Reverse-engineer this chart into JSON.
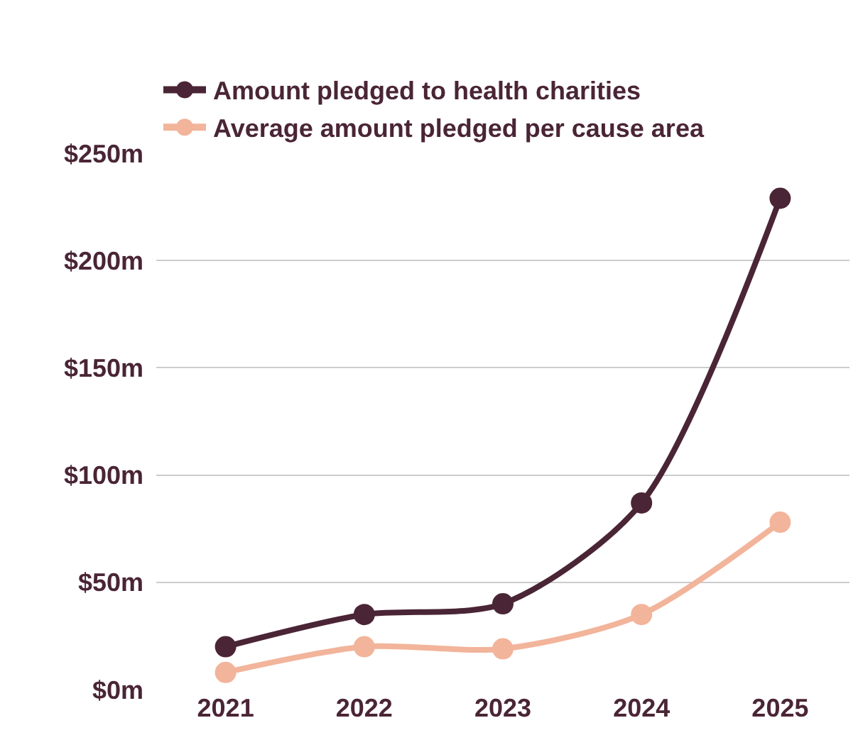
{
  "chart_data": {
    "type": "line",
    "categories": [
      "2021",
      "2022",
      "2023",
      "2024",
      "2025"
    ],
    "series": [
      {
        "name": "Amount pledged to health charities",
        "color": "#4a2535",
        "values": [
          20,
          35,
          40,
          87,
          229
        ]
      },
      {
        "name": "Average amount pledged per cause area",
        "color": "#f2b49a",
        "values": [
          8,
          20,
          19,
          35,
          78
        ]
      }
    ],
    "ylim": [
      0,
      250
    ],
    "yticks": [
      {
        "value": 0,
        "label": "$0m"
      },
      {
        "value": 50,
        "label": "$50m"
      },
      {
        "value": 100,
        "label": "$100m"
      },
      {
        "value": 150,
        "label": "$150m"
      },
      {
        "value": 200,
        "label": "$200m"
      },
      {
        "value": 250,
        "label": "$250m"
      }
    ],
    "grid": "y",
    "legend": "top left",
    "marker": "circle",
    "line_style": "solid"
  }
}
